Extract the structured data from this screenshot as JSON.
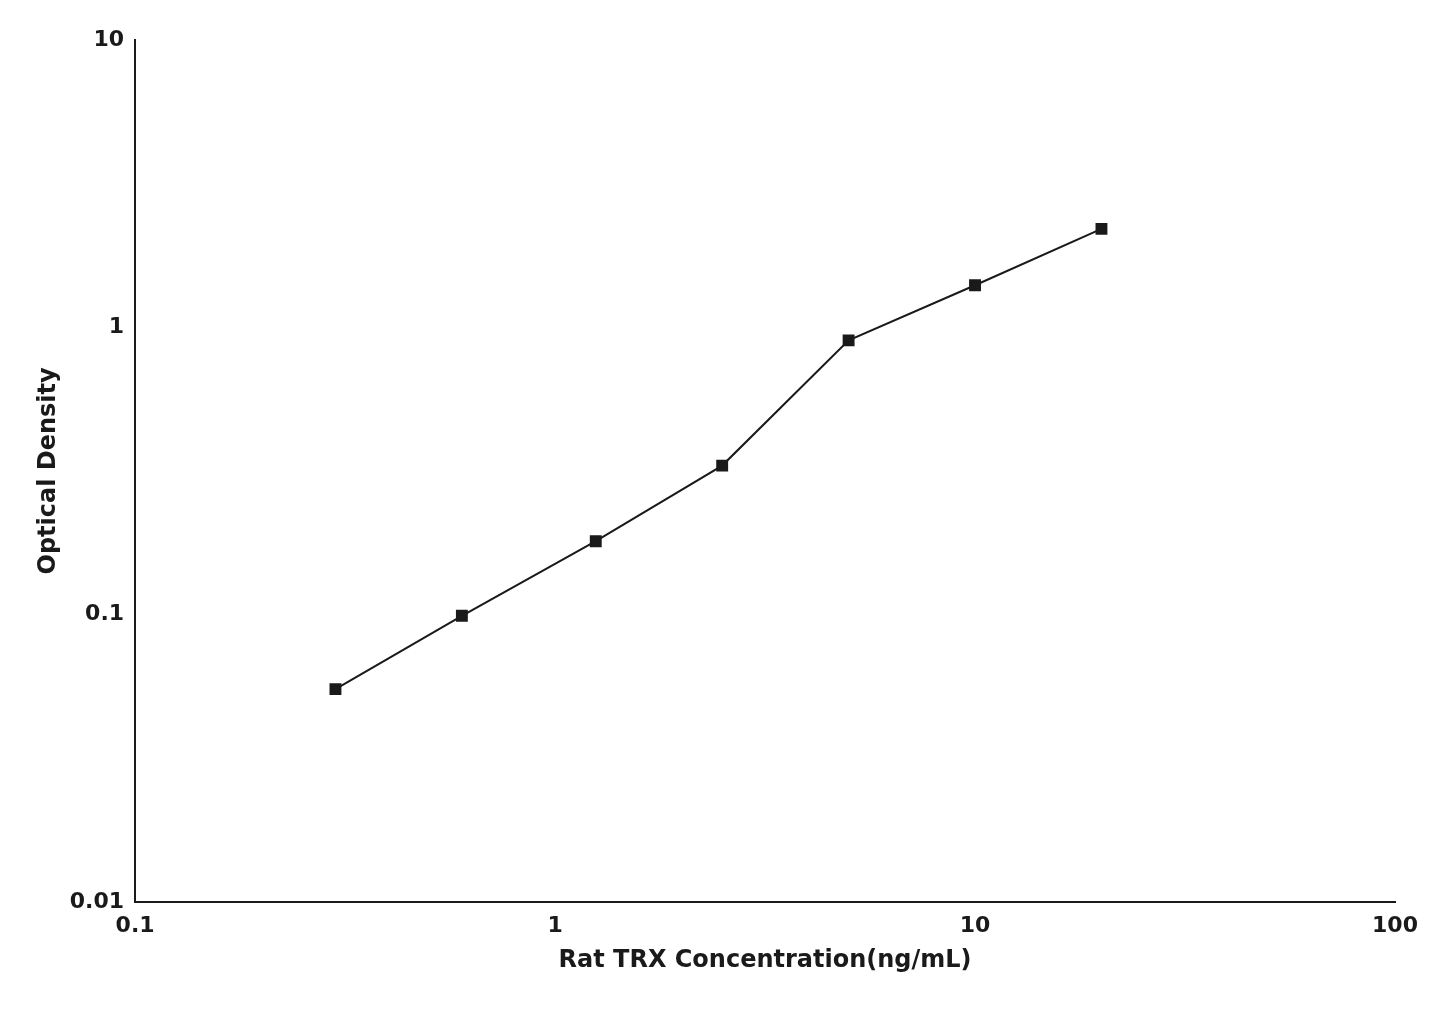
{
  "chart_data": {
    "type": "line",
    "x": [
      0.3,
      0.6,
      1.25,
      2.5,
      5.0,
      10.0,
      20.0
    ],
    "values": [
      0.055,
      0.099,
      0.18,
      0.33,
      0.9,
      1.4,
      2.2
    ],
    "xlabel": "Rat TRX Concentration(ng/mL)",
    "ylabel": "Optical Density",
    "xlim": [
      0.1,
      100
    ],
    "ylim": [
      0.01,
      10
    ],
    "xticks": [
      0.1,
      1,
      10,
      100
    ],
    "yticks": [
      0.01,
      0.1,
      1,
      10
    ],
    "log": true,
    "color": "#1a1a1a",
    "marker": "square",
    "grid": false
  }
}
